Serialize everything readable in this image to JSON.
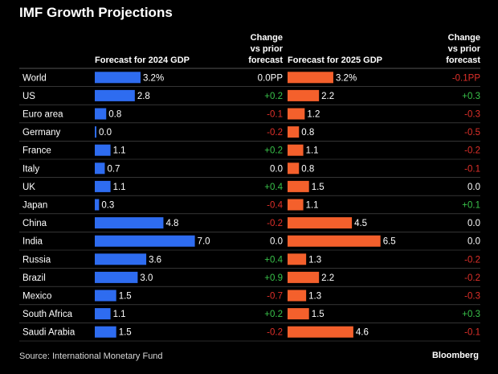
{
  "chart_data": {
    "type": "bar",
    "title": "IMF Growth Projections",
    "col_2024_label": "Forecast for 2024 GDP",
    "col_2025_label": "Forecast for 2025 GDP",
    "change_label": [
      "Change",
      "vs prior",
      "forecast"
    ],
    "categories": [
      "World",
      "US",
      "Euro area",
      "Germany",
      "France",
      "Italy",
      "UK",
      "Japan",
      "China",
      "India",
      "Russia",
      "Brazil",
      "Mexico",
      "South Africa",
      "Saudi Arabia"
    ],
    "series": [
      {
        "name": "Forecast for 2024 GDP",
        "values": [
          3.2,
          2.8,
          0.8,
          0.0,
          1.1,
          0.7,
          1.1,
          0.3,
          4.8,
          7.0,
          3.6,
          3.0,
          1.5,
          1.1,
          1.5
        ],
        "labels": [
          "3.2%",
          "2.8",
          "0.8",
          "0.0",
          "1.1",
          "0.7",
          "1.1",
          "0.3",
          "4.8",
          "7.0",
          "3.6",
          "3.0",
          "1.5",
          "1.1",
          "1.5"
        ],
        "changes": [
          "0.0PP",
          "+0.2",
          "-0.1",
          "-0.2",
          "+0.2",
          "0.0",
          "+0.4",
          "-0.4",
          "-0.2",
          "0.0",
          "+0.4",
          "+0.9",
          "-0.7",
          "+0.2",
          "-0.2"
        ],
        "color": "#2e6cf0"
      },
      {
        "name": "Forecast for 2025 GDP",
        "values": [
          3.2,
          2.2,
          1.2,
          0.8,
          1.1,
          0.8,
          1.5,
          1.1,
          4.5,
          6.5,
          1.3,
          2.2,
          1.3,
          1.5,
          4.6
        ],
        "labels": [
          "3.2%",
          "2.2",
          "1.2",
          "0.8",
          "1.1",
          "0.8",
          "1.5",
          "1.1",
          "4.5",
          "6.5",
          "1.3",
          "2.2",
          "1.3",
          "1.5",
          "4.6"
        ],
        "changes": [
          "-0.1PP",
          "+0.3",
          "-0.3",
          "-0.5",
          "-0.2",
          "-0.1",
          "0.0",
          "+0.1",
          "0.0",
          "0.0",
          "-0.2",
          "-0.2",
          "-0.3",
          "+0.3",
          "-0.1"
        ],
        "color": "#f4602c"
      }
    ],
    "colors": {
      "positive": "#39c24a",
      "negative": "#e0302a",
      "neutral": "#ffffff",
      "divider": "#555555"
    },
    "source": "Source: International Monetary Fund",
    "brand": "Bloomberg"
  }
}
